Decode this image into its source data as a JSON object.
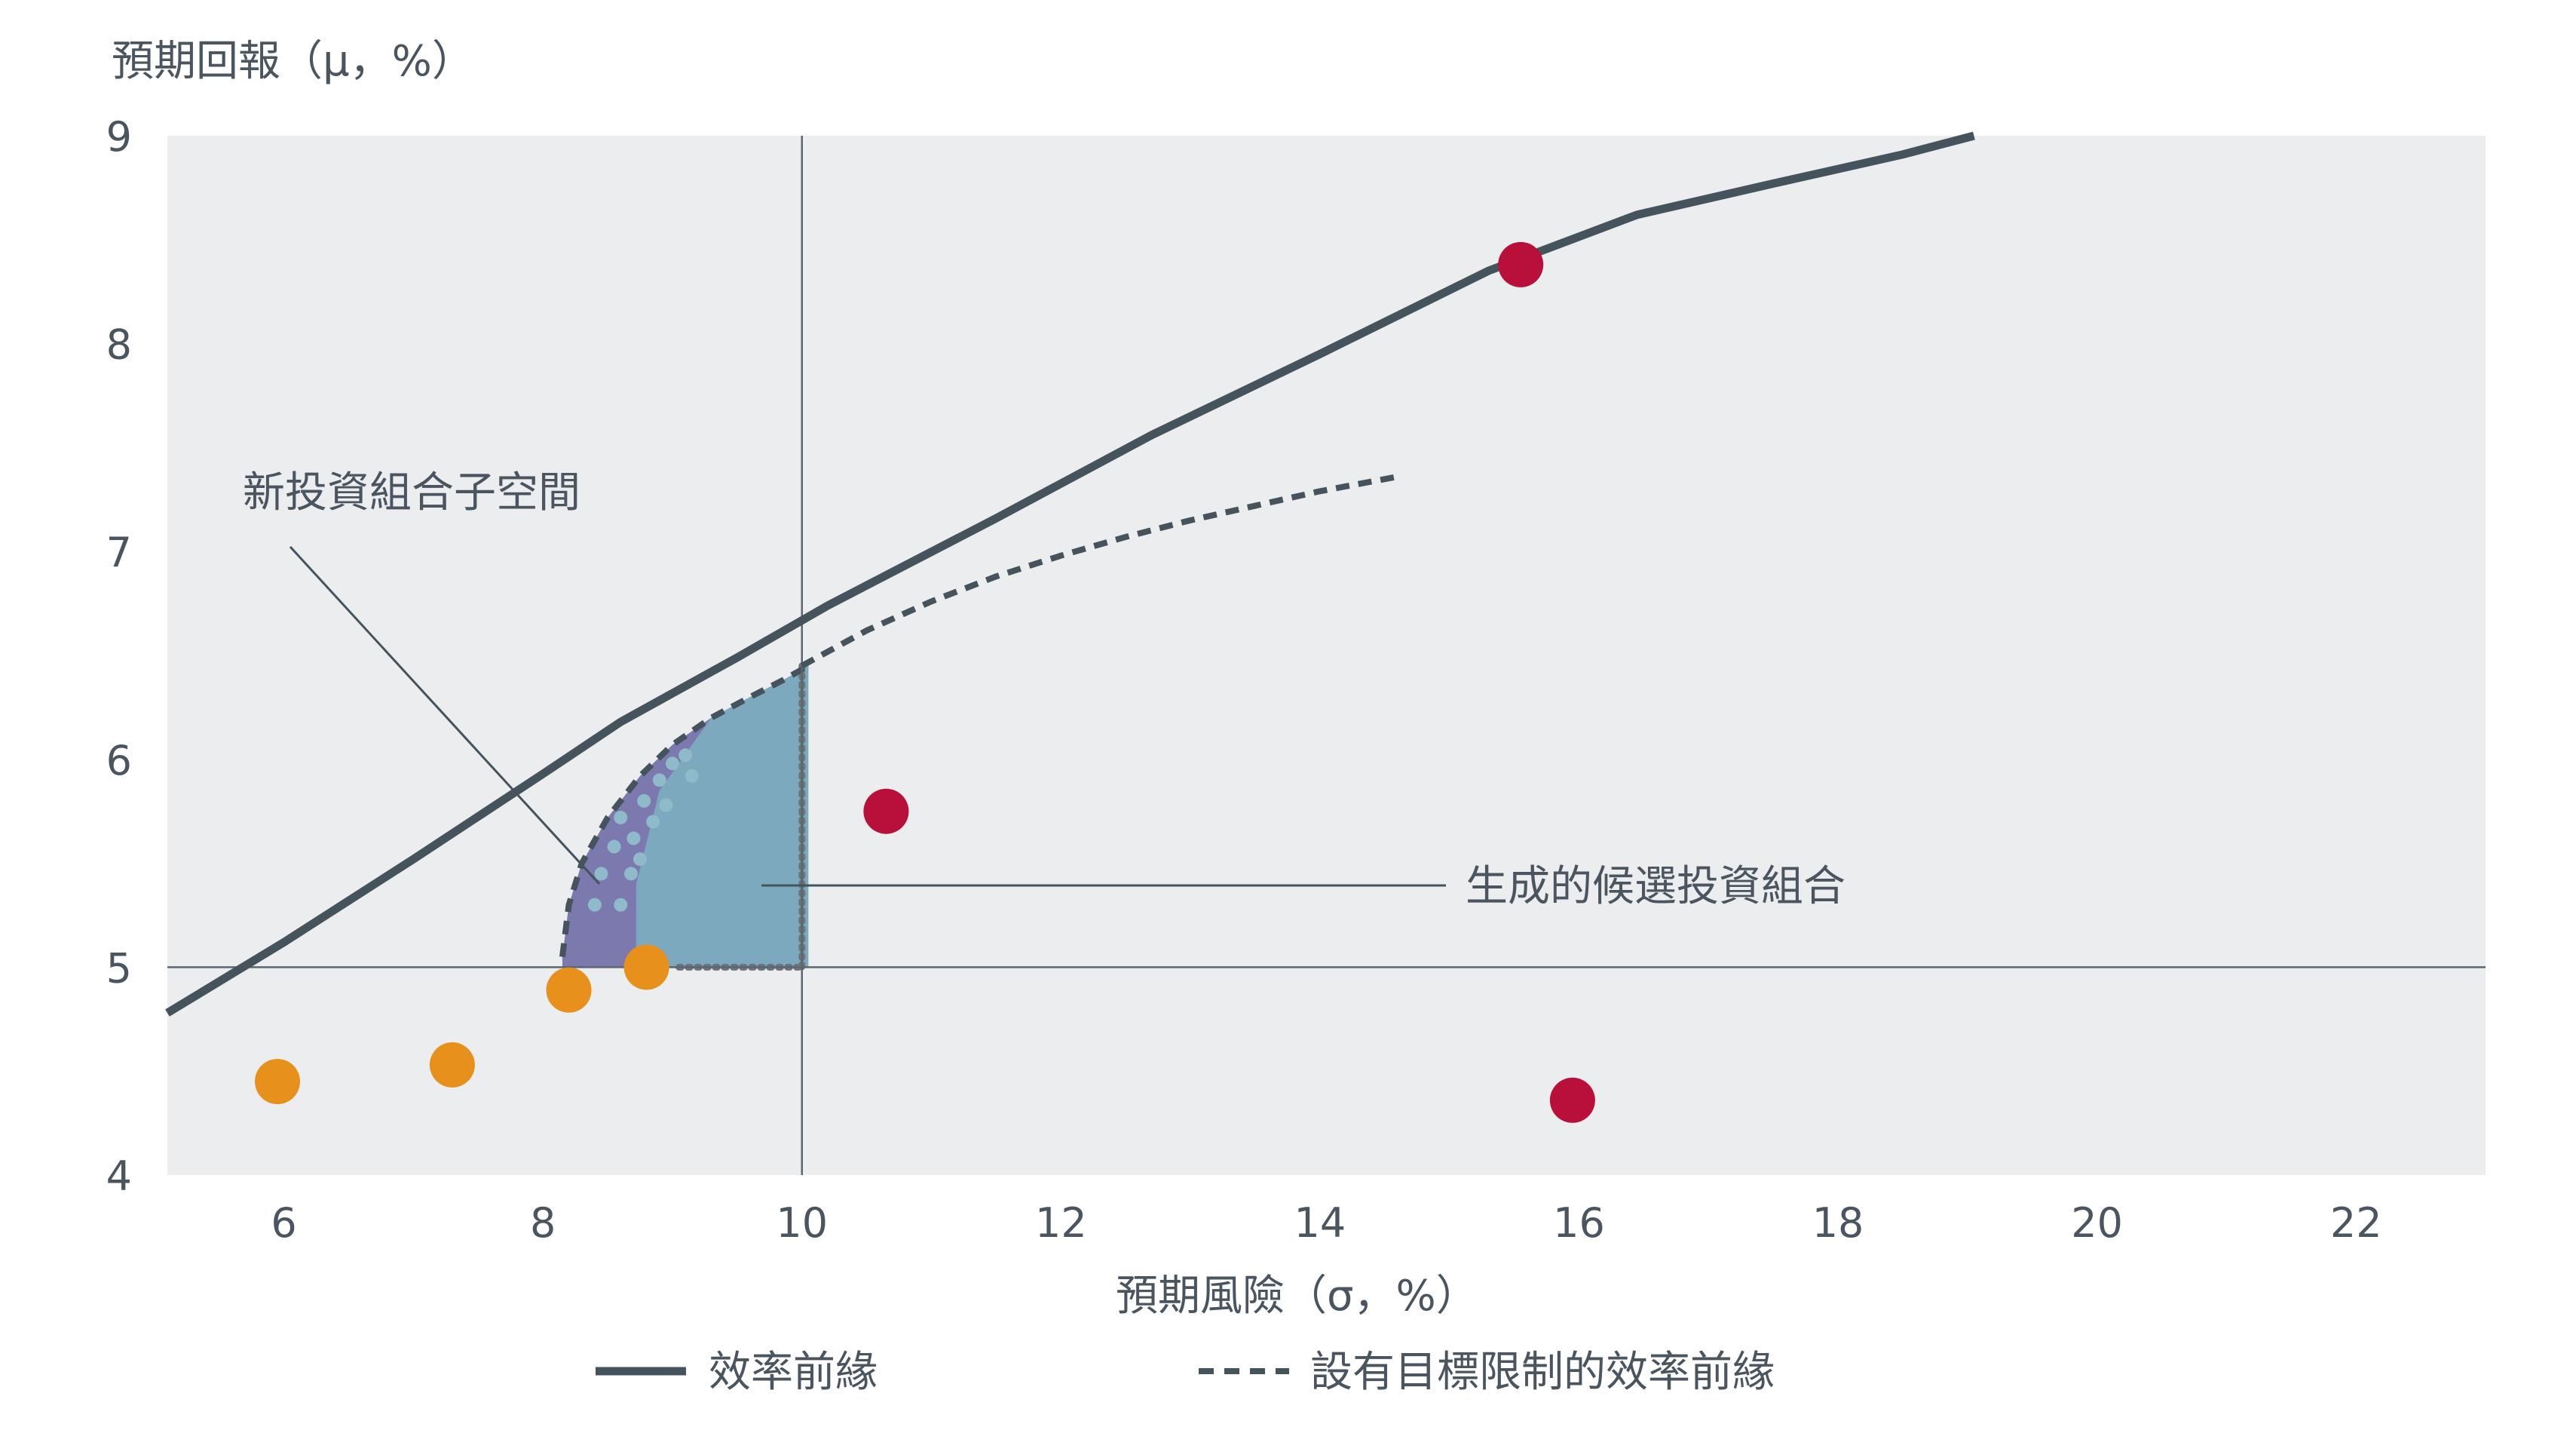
{
  "colors": {
    "plot_bg": "#ecedef",
    "frontier": "#45535c",
    "constrained_frontier": "#45535c",
    "subspace": "#7b79ad",
    "candidates": "#7ca9be",
    "candidate_dots": "#8fbac9",
    "red_points": "#b8103a",
    "orange_points": "#e8901c",
    "refline": "#5b6670",
    "text": "#4a5560"
  },
  "chart_data": {
    "type": "scatter",
    "title": "",
    "xlabel": "預期風險（σ，%）",
    "ylabel": "預期回報（μ，%）",
    "xlim": [
      5.1,
      23.0
    ],
    "ylim": [
      4,
      9
    ],
    "xticks": [
      6,
      8,
      10,
      12,
      14,
      16,
      18,
      20,
      22
    ],
    "yticks": [
      4,
      5,
      6,
      7,
      8,
      9
    ],
    "grid": false,
    "reference_lines": {
      "x": 10,
      "y": 5
    },
    "legend_position": "bottom",
    "series": [
      {
        "name": "效率前緣",
        "kind": "line",
        "style": "solid",
        "x": [
          5.1,
          6.0,
          7.0,
          8.0,
          8.6,
          9.5,
          10.2,
          11.5,
          12.7,
          14.0,
          15.3,
          16.45,
          17.5,
          18.5,
          19.05
        ],
        "y": [
          4.78,
          5.12,
          5.52,
          5.93,
          6.18,
          6.49,
          6.74,
          7.16,
          7.56,
          7.95,
          8.35,
          8.62,
          8.77,
          8.91,
          9.0
        ]
      },
      {
        "name": "設有目標限制的效率前緣",
        "kind": "line",
        "style": "dashed",
        "x": [
          10.0,
          10.5,
          11.0,
          11.5,
          12.0,
          12.5,
          13.0,
          13.5,
          14.0,
          14.6
        ],
        "y": [
          6.45,
          6.62,
          6.76,
          6.88,
          6.98,
          7.07,
          7.15,
          7.22,
          7.29,
          7.36
        ]
      },
      {
        "name": "",
        "kind": "points",
        "role": "red",
        "x": [
          15.55,
          10.65,
          15.95
        ],
        "y": [
          8.38,
          5.75,
          4.36
        ]
      },
      {
        "name": "",
        "kind": "points",
        "role": "orange",
        "x": [
          5.95,
          7.3,
          8.2,
          8.8
        ],
        "y": [
          4.45,
          4.53,
          4.89,
          5.0
        ]
      }
    ],
    "regions": {
      "subspace_outline": {
        "x": [
          8.15,
          8.2,
          8.3,
          8.5,
          8.75,
          9.0,
          9.3,
          9.6,
          9.85,
          10.05
        ],
        "y": [
          5.05,
          5.3,
          5.5,
          5.72,
          5.92,
          6.07,
          6.2,
          6.3,
          6.38,
          6.45
        ]
      }
    },
    "annotations": [
      {
        "text": "新投資組合子空間"
      },
      {
        "text": "生成的候選投資組合"
      }
    ]
  },
  "legend": {
    "frontier_label": "效率前緣",
    "constrained_label": "設有目標限制的效率前緣"
  }
}
